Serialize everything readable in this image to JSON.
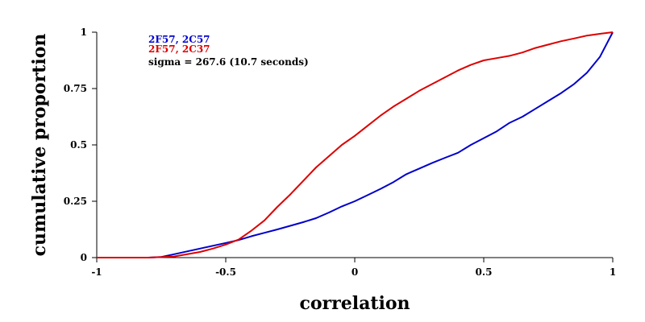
{
  "chart_data": {
    "type": "line",
    "xlabel": "correlation",
    "ylabel": "cumulative proportion",
    "xlim": [
      -1,
      1
    ],
    "ylim": [
      0,
      1
    ],
    "x_ticks": [
      "-1",
      "-0.5",
      "0",
      "0.5",
      "1"
    ],
    "y_ticks": [
      "0",
      "0.25",
      "0.5",
      "0.75",
      "1"
    ],
    "grid": false,
    "legend_position": "top-left",
    "annotation": "sigma = 267.6 (10.7 seconds)",
    "series": [
      {
        "name": "2F57, 2C57",
        "color": "#0000cc",
        "x": [
          -1.0,
          -0.8,
          -0.75,
          -0.7,
          -0.6,
          -0.5,
          -0.45,
          -0.4,
          -0.35,
          -0.3,
          -0.2,
          -0.15,
          -0.1,
          -0.05,
          0.0,
          0.05,
          0.1,
          0.15,
          0.2,
          0.25,
          0.3,
          0.35,
          0.4,
          0.45,
          0.5,
          0.55,
          0.6,
          0.65,
          0.7,
          0.75,
          0.8,
          0.85,
          0.9,
          0.95,
          1.0
        ],
        "y": [
          0.0,
          0.0,
          0.003,
          0.015,
          0.04,
          0.065,
          0.078,
          0.095,
          0.11,
          0.125,
          0.157,
          0.175,
          0.2,
          0.227,
          0.25,
          0.277,
          0.305,
          0.335,
          0.37,
          0.395,
          0.42,
          0.443,
          0.465,
          0.5,
          0.53,
          0.56,
          0.598,
          0.625,
          0.66,
          0.695,
          0.73,
          0.77,
          0.82,
          0.89,
          1.0
        ]
      },
      {
        "name": "2F57, 2C37",
        "color": "#dd0000",
        "x": [
          -1.0,
          -0.8,
          -0.7,
          -0.6,
          -0.55,
          -0.5,
          -0.45,
          -0.4,
          -0.35,
          -0.3,
          -0.25,
          -0.2,
          -0.15,
          -0.1,
          -0.05,
          0.0,
          0.05,
          0.1,
          0.15,
          0.2,
          0.25,
          0.3,
          0.35,
          0.4,
          0.45,
          0.5,
          0.55,
          0.6,
          0.65,
          0.7,
          0.75,
          0.8,
          0.85,
          0.9,
          0.95,
          1.0
        ],
        "y": [
          0.0,
          0.0,
          0.005,
          0.025,
          0.04,
          0.058,
          0.08,
          0.12,
          0.165,
          0.225,
          0.28,
          0.34,
          0.4,
          0.45,
          0.5,
          0.54,
          0.585,
          0.63,
          0.67,
          0.705,
          0.74,
          0.77,
          0.8,
          0.83,
          0.855,
          0.875,
          0.885,
          0.895,
          0.91,
          0.93,
          0.945,
          0.96,
          0.972,
          0.985,
          0.993,
          1.0
        ]
      }
    ]
  }
}
